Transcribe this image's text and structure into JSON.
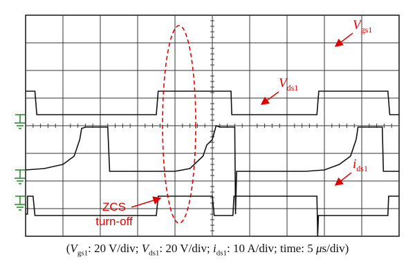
{
  "chart_data": {
    "type": "line",
    "grid": true,
    "title": "",
    "caption": {
      "vgs_label": "V",
      "vgs_sub": "gs1",
      "vgs_scale": ": 20 V/div;",
      "vds_label": "V",
      "vds_sub": "ds1",
      "vds_scale": ": 20 V/div;",
      "ids_label": "i",
      "ids_sub": "ds1",
      "ids_scale": ": 10 A/div;",
      "time_prefix": "time: 5 ",
      "time_mu": "μ",
      "time_suffix": "s/div)"
    },
    "divisions": {
      "x": 10,
      "y": 8
    },
    "series": [
      {
        "name": "Vgs1",
        "label_main": "V",
        "label_sub": "gs1",
        "color": "#111111",
        "ground_div": 4,
        "points": [
          [
            0,
            5.25
          ],
          [
            0.25,
            5.25
          ],
          [
            0.3,
            4.4
          ],
          [
            1,
            4.4
          ],
          [
            2,
            4.4
          ],
          [
            3,
            4.4
          ],
          [
            3.5,
            4.4
          ],
          [
            3.55,
            5.25
          ],
          [
            5.5,
            5.25
          ],
          [
            5.52,
            4.4
          ],
          [
            6.5,
            4.4
          ],
          [
            7.8,
            4.4
          ],
          [
            7.85,
            5.25
          ],
          [
            9.7,
            5.25
          ],
          [
            9.75,
            4.4
          ],
          [
            10,
            4.4
          ]
        ]
      },
      {
        "name": "Vds1",
        "label_main": "V",
        "label_sub": "ds1",
        "color": "#111111",
        "ground_div": 7,
        "points": [
          [
            0,
            2.4
          ],
          [
            0.5,
            2.45
          ],
          [
            1.0,
            2.6
          ],
          [
            1.3,
            2.9
          ],
          [
            1.45,
            3.5
          ],
          [
            1.5,
            3.9
          ],
          [
            1.6,
            3.95
          ],
          [
            2.0,
            3.95
          ],
          [
            2.2,
            3.95
          ],
          [
            2.25,
            2.35
          ],
          [
            3.0,
            2.35
          ],
          [
            3.5,
            2.35
          ],
          [
            4.0,
            2.35
          ],
          [
            4.4,
            2.45
          ],
          [
            4.75,
            2.9
          ],
          [
            4.85,
            3.3
          ],
          [
            5.0,
            3.5
          ],
          [
            5.1,
            4.0
          ],
          [
            5.2,
            3.95
          ],
          [
            5.6,
            3.95
          ],
          [
            5.62,
            0.8
          ],
          [
            5.65,
            2.35
          ],
          [
            6.5,
            2.35
          ],
          [
            7.5,
            2.35
          ],
          [
            8.0,
            2.4
          ],
          [
            8.4,
            2.6
          ],
          [
            8.7,
            2.9
          ],
          [
            8.85,
            3.5
          ],
          [
            8.9,
            3.95
          ],
          [
            9.2,
            3.95
          ],
          [
            9.55,
            3.95
          ],
          [
            9.58,
            2.35
          ],
          [
            10,
            2.35
          ]
        ]
      },
      {
        "name": "ids1",
        "label_main": "i",
        "label_sub": "ds1",
        "color": "#111111",
        "ground_div": 4,
        "points": [
          [
            0,
            0.8
          ],
          [
            0.05,
            0.8
          ],
          [
            0.05,
            1.45
          ],
          [
            0.2,
            1.45
          ],
          [
            0.25,
            0.75
          ],
          [
            1.0,
            0.75
          ],
          [
            2.0,
            0.75
          ],
          [
            2.5,
            0.75
          ],
          [
            3.5,
            0.75
          ],
          [
            3.55,
            1.45
          ],
          [
            4.0,
            1.45
          ],
          [
            5.0,
            1.45
          ],
          [
            5.05,
            0.75
          ],
          [
            5.55,
            0.75
          ],
          [
            5.58,
            1.45
          ],
          [
            7.8,
            1.45
          ],
          [
            7.82,
            0.0
          ],
          [
            7.84,
            0.75
          ],
          [
            8.5,
            0.75
          ],
          [
            9.0,
            0.75
          ],
          [
            9.7,
            0.75
          ],
          [
            9.72,
            1.45
          ],
          [
            10,
            1.45
          ]
        ]
      }
    ],
    "annotations": [
      {
        "text": "ZCS",
        "text2": "turn-off",
        "color": "#e00000"
      }
    ]
  }
}
